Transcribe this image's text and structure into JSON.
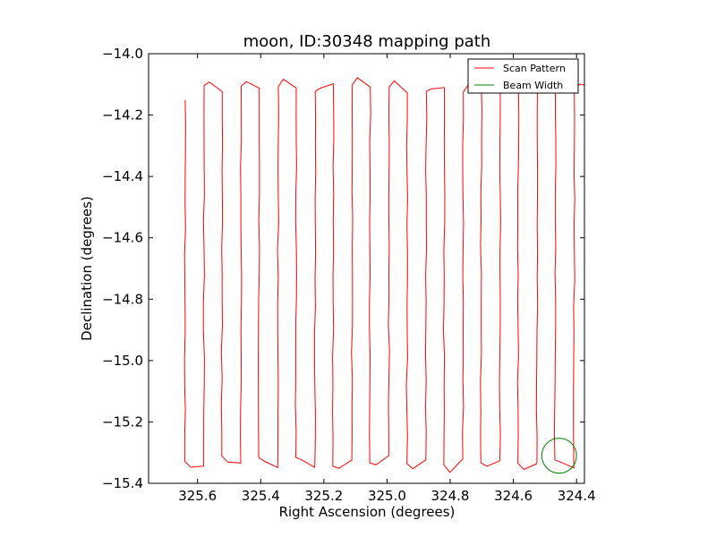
{
  "chart_data": {
    "type": "line",
    "title": "moon, ID:30348 mapping path",
    "xlabel": "Right Ascension (degrees)",
    "ylabel": "Declination (degrees)",
    "xlim": [
      325.755,
      324.375
    ],
    "ylim": [
      -15.4,
      -14.0
    ],
    "x_inverted": true,
    "xticks": [
      325.6,
      325.4,
      325.2,
      325.0,
      324.8,
      324.6,
      324.4
    ],
    "xtick_labels": [
      "325.6",
      "325.4",
      "325.2",
      "325.0",
      "324.8",
      "324.6",
      "324.4"
    ],
    "yticks": [
      -14.0,
      -14.2,
      -14.4,
      -14.6,
      -14.8,
      -15.0,
      -15.2,
      -15.4
    ],
    "ytick_labels": [
      "−14.0",
      "−14.2",
      "−14.4",
      "−14.6",
      "−14.8",
      "−15.0",
      "−15.2",
      "−15.4"
    ],
    "legend_position": "top-right",
    "grid": false,
    "series": [
      {
        "name": "Scan Pattern",
        "color": "#ff0000",
        "scan": {
          "ra_start": 325.639,
          "ra_step": 0.0586,
          "sweeps": 24,
          "dec_top": -14.11,
          "dec_bottom": -15.33,
          "first_top": -14.15
        }
      },
      {
        "name": "Beam Width",
        "color": "#008000",
        "circle": {
          "ra": 324.455,
          "dec": -15.31,
          "radius_ra": 0.055,
          "radius_dec": 0.057
        }
      }
    ]
  }
}
